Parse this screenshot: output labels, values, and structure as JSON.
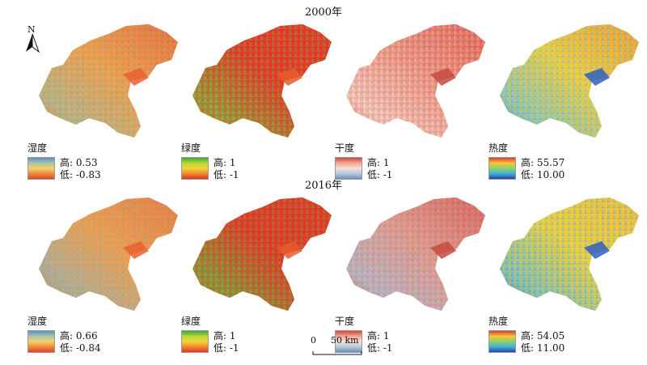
{
  "rows": [
    {
      "year": "2000年",
      "panels": [
        {
          "key": "wet",
          "name": "湿度",
          "high_label": "高: 0.53",
          "low_label": "低: -0.83",
          "ramp": [
            "#5b8fc7",
            "#a9c4a5",
            "#f3d26a",
            "#f08a3c",
            "#e0452a"
          ],
          "fill": [
            "#e8542c",
            "#f2a14b",
            "#9cc0a0",
            "#e9602e"
          ]
        },
        {
          "key": "green",
          "name": "绿度",
          "high_label": "高: 1",
          "low_label": "低: -1",
          "ramp": [
            "#3ea63a",
            "#b6d836",
            "#f7d23c",
            "#f08a2c",
            "#e2332a"
          ],
          "fill": [
            "#e2362a",
            "#e2362a",
            "#7cc040",
            "#e85a2c"
          ]
        },
        {
          "key": "dry",
          "name": "干度",
          "high_label": "高: 1",
          "low_label": "低: -1",
          "ramp": [
            "#d8453b",
            "#f0a795",
            "#f3e2d6",
            "#b9c9dc",
            "#6a8fc2"
          ],
          "fill": [
            "#d9463b",
            "#e8927f",
            "#f0d9cf",
            "#c54a3f"
          ]
        },
        {
          "key": "heat",
          "name": "热度",
          "high_label": "高: 55.57",
          "low_label": "低: 10.00",
          "ramp": [
            "#e23a28",
            "#f6c53a",
            "#8fd16a",
            "#3fb3d8",
            "#2a3fb0"
          ],
          "fill": [
            "#f08a2c",
            "#f3d13b",
            "#6ec5d9",
            "#2f5fc2"
          ]
        }
      ]
    },
    {
      "year": "2016年",
      "panels": [
        {
          "key": "wet",
          "name": "湿度",
          "high_label": "高: 0.66",
          "low_label": "低: -0.84",
          "ramp": [
            "#5b8fc7",
            "#a9c4a5",
            "#f3d26a",
            "#f08a3c",
            "#e0452a"
          ],
          "fill": [
            "#ea6a30",
            "#f2a14b",
            "#8fb6b8",
            "#e9602e"
          ]
        },
        {
          "key": "green",
          "name": "绿度",
          "high_label": "高: 1",
          "low_label": "低: -1",
          "ramp": [
            "#3ea63a",
            "#b6d836",
            "#f7d23c",
            "#f08a2c",
            "#e2332a"
          ],
          "fill": [
            "#e2362a",
            "#e2362a",
            "#6cb83e",
            "#e85a2c"
          ]
        },
        {
          "key": "dry",
          "name": "干度",
          "high_label": "高: 1",
          "low_label": "低: -1",
          "ramp": [
            "#d8453b",
            "#f0a795",
            "#f3e2d6",
            "#b9c9dc",
            "#6a8fc2"
          ],
          "fill": [
            "#d9463b",
            "#e39a88",
            "#a9bfd6",
            "#c54a3f"
          ]
        },
        {
          "key": "heat",
          "name": "热度",
          "high_label": "高: 54.05",
          "low_label": "低: 11.00",
          "ramp": [
            "#e23a28",
            "#f6c53a",
            "#8fd16a",
            "#3fb3d8",
            "#2a3fb0"
          ],
          "fill": [
            "#f4b43a",
            "#f3d13b",
            "#5ab8d8",
            "#2f5fc2"
          ]
        }
      ]
    }
  ],
  "north_label": "N",
  "scale": {
    "zero": "0",
    "end": "50 km"
  }
}
